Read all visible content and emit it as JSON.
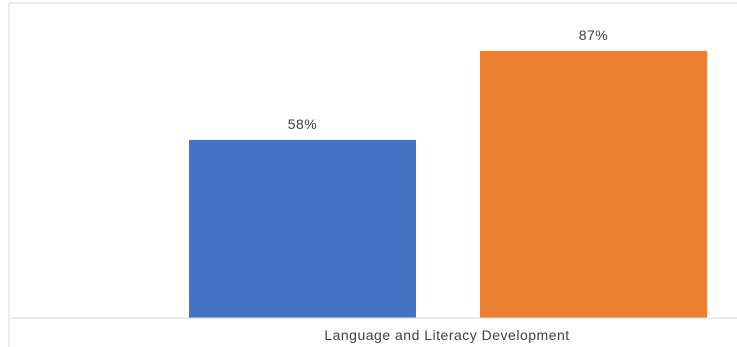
{
  "chart_data": {
    "type": "bar",
    "categories": [
      "Language and Literacy Development"
    ],
    "series": [
      {
        "values": [
          58
        ],
        "color": "#4472C4"
      },
      {
        "values": [
          87
        ],
        "color": "#ED7D31"
      }
    ],
    "data_labels": [
      "58%",
      "87%"
    ],
    "value_unit": "%",
    "ylim": [
      0,
      100
    ],
    "grid": false,
    "legend": "none"
  }
}
